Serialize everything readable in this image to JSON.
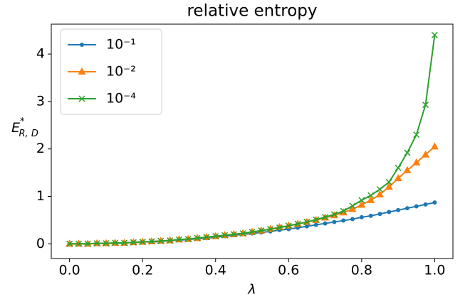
{
  "chart_data": {
    "type": "line",
    "title": "relative entropy",
    "xlabel": "λ",
    "ylabel": {
      "base": "E",
      "sup": "*",
      "sub": "R, D"
    },
    "x": [
      0,
      0.025,
      0.05,
      0.075,
      0.1,
      0.125,
      0.15,
      0.175,
      0.2,
      0.225,
      0.25,
      0.275,
      0.3,
      0.325,
      0.35,
      0.375,
      0.4,
      0.425,
      0.45,
      0.475,
      0.5,
      0.525,
      0.55,
      0.575,
      0.6,
      0.625,
      0.65,
      0.675,
      0.7,
      0.725,
      0.75,
      0.775,
      0.8,
      0.825,
      0.85,
      0.875,
      0.9,
      0.925,
      0.95,
      0.975,
      1
    ],
    "series": [
      {
        "name": "10⁻¹",
        "color": "#1f77b4",
        "marker": "dot",
        "values": [
          0,
          0,
          0,
          0.01,
          0.01,
          0.01,
          0.02,
          0.03,
          0.04,
          0.04,
          0.05,
          0.07,
          0.08,
          0.09,
          0.11,
          0.12,
          0.14,
          0.16,
          0.18,
          0.2,
          0.22,
          0.24,
          0.26,
          0.29,
          0.31,
          0.34,
          0.37,
          0.4,
          0.43,
          0.46,
          0.49,
          0.52,
          0.56,
          0.59,
          0.63,
          0.67,
          0.71,
          0.75,
          0.79,
          0.83,
          0.87
        ]
      },
      {
        "name": "10⁻²",
        "color": "#ff7f0e",
        "marker": "triangle",
        "values": [
          0,
          0,
          0,
          0.01,
          0.01,
          0.02,
          0.02,
          0.03,
          0.04,
          0.05,
          0.06,
          0.07,
          0.09,
          0.1,
          0.12,
          0.14,
          0.16,
          0.18,
          0.2,
          0.22,
          0.25,
          0.28,
          0.31,
          0.35,
          0.38,
          0.42,
          0.46,
          0.5,
          0.55,
          0.6,
          0.66,
          0.73,
          0.82,
          0.92,
          1.04,
          1.2,
          1.38,
          1.55,
          1.71,
          1.88,
          2.05
        ]
      },
      {
        "name": "10⁻⁴",
        "color": "#2ca02c",
        "marker": "x",
        "values": [
          0,
          0,
          0,
          0.01,
          0.01,
          0.02,
          0.02,
          0.03,
          0.04,
          0.05,
          0.06,
          0.07,
          0.09,
          0.1,
          0.12,
          0.14,
          0.16,
          0.18,
          0.2,
          0.22,
          0.25,
          0.28,
          0.31,
          0.34,
          0.38,
          0.42,
          0.46,
          0.51,
          0.56,
          0.62,
          0.69,
          0.8,
          0.92,
          1.02,
          1.15,
          1.3,
          1.6,
          1.92,
          2.3,
          2.93,
          4.4
        ]
      }
    ],
    "xlim": [
      -0.05,
      1.05
    ],
    "xticks": [
      {
        "value": 0,
        "label": "0.0"
      },
      {
        "value": 0.2,
        "label": "0.2"
      },
      {
        "value": 0.4,
        "label": "0.4"
      },
      {
        "value": 0.6,
        "label": "0.6"
      },
      {
        "value": 0.8,
        "label": "0.8"
      },
      {
        "value": 1,
        "label": "1.0"
      }
    ],
    "ylim": [
      -0.31,
      4.63
    ],
    "yticks": [
      0,
      1,
      2,
      3,
      4
    ],
    "grid": false,
    "legend": "upper left"
  }
}
